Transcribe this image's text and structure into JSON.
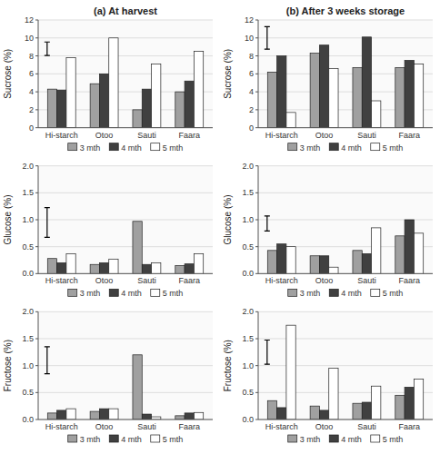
{
  "chart_data": [
    {
      "type": "bar",
      "title": "(a) At harvest",
      "categories": [
        "Hi-starch",
        "Otoo",
        "Sauti",
        "Faara"
      ],
      "series": [
        {
          "name": "3 mth",
          "color": "#a0a0a0",
          "values": [
            4.3,
            4.9,
            2.0,
            4.0
          ]
        },
        {
          "name": "4 mth",
          "color": "#404040",
          "values": [
            4.2,
            6.0,
            4.3,
            5.2
          ]
        },
        {
          "name": "5 mth",
          "color": "#ffffff",
          "values": [
            7.8,
            10.0,
            7.1,
            8.5
          ]
        }
      ],
      "ylabel": "Sucrose (%)",
      "ylim": [
        0,
        12
      ],
      "yticks": [
        0,
        2,
        4,
        6,
        8,
        10,
        12
      ],
      "grid": true,
      "legend": "bottom",
      "lsd": 1.5,
      "lsd_y": 8.8
    },
    {
      "type": "bar",
      "title": "(b) After 3 weeks storage",
      "categories": [
        "Hi-starch",
        "Otoo",
        "Sauti",
        "Faara"
      ],
      "series": [
        {
          "name": "3 mth",
          "color": "#a0a0a0",
          "values": [
            6.2,
            8.3,
            6.7,
            6.7
          ]
        },
        {
          "name": "4 mth",
          "color": "#404040",
          "values": [
            8.0,
            9.2,
            10.1,
            7.5
          ]
        },
        {
          "name": "5 mth",
          "color": "#ffffff",
          "values": [
            1.7,
            6.6,
            3.0,
            7.1
          ]
        }
      ],
      "ylabel": "Sucrose (%)",
      "ylim": [
        0,
        12
      ],
      "yticks": [
        0,
        2,
        4,
        6,
        8,
        10,
        12
      ],
      "grid": true,
      "legend": "bottom",
      "lsd": 2.5,
      "lsd_y": 10.0
    },
    {
      "type": "bar",
      "categories": [
        "Hi-starch",
        "Otoo",
        "Sauti",
        "Faara"
      ],
      "series": [
        {
          "name": "3 mth",
          "color": "#a0a0a0",
          "values": [
            0.28,
            0.17,
            0.97,
            0.15
          ]
        },
        {
          "name": "4 mth",
          "color": "#404040",
          "values": [
            0.2,
            0.2,
            0.17,
            0.18
          ]
        },
        {
          "name": "5 mth",
          "color": "#ffffff",
          "values": [
            0.37,
            0.27,
            0.2,
            0.37
          ]
        }
      ],
      "ylabel": "Glucose (%)",
      "ylim": [
        0,
        2
      ],
      "yticks": [
        {
          "value": 0,
          "label": "0.0"
        },
        0.5,
        {
          "value": 1.0,
          "label": "1.0"
        },
        1.5,
        {
          "value": 2.0,
          "label": "2.0"
        }
      ],
      "grid": true,
      "legend": "bottom",
      "lsd": 0.55,
      "lsd_y": 0.95
    },
    {
      "type": "bar",
      "categories": [
        "Hi-starch",
        "Otoo",
        "Sauti",
        "Faara"
      ],
      "series": [
        {
          "name": "3 mth",
          "color": "#a0a0a0",
          "values": [
            0.43,
            0.33,
            0.43,
            0.7
          ]
        },
        {
          "name": "4 mth",
          "color": "#404040",
          "values": [
            0.55,
            0.33,
            0.37,
            1.0
          ]
        },
        {
          "name": "5 mth",
          "color": "#ffffff",
          "values": [
            0.5,
            0.12,
            0.85,
            0.75
          ]
        }
      ],
      "ylabel": "Glucose (%)",
      "ylim": [
        0,
        2
      ],
      "yticks": [
        {
          "value": 0,
          "label": "0.0"
        },
        0.5,
        {
          "value": 1.0,
          "label": "1.0"
        },
        1.5,
        {
          "value": 2.0,
          "label": "2.0"
        }
      ],
      "grid": true,
      "legend": "bottom",
      "lsd": 0.28,
      "lsd_y": 0.93
    },
    {
      "type": "bar",
      "categories": [
        "Hi-starch",
        "Otoo",
        "Sauti",
        "Faara"
      ],
      "series": [
        {
          "name": "3 mth",
          "color": "#a0a0a0",
          "values": [
            0.12,
            0.15,
            1.2,
            0.07
          ]
        },
        {
          "name": "4 mth",
          "color": "#404040",
          "values": [
            0.17,
            0.2,
            0.1,
            0.12
          ]
        },
        {
          "name": "5 mth",
          "color": "#ffffff",
          "values": [
            0.2,
            0.2,
            0.05,
            0.13
          ]
        }
      ],
      "ylabel": "Fructose (%)",
      "ylim": [
        0,
        2
      ],
      "yticks": [
        {
          "value": 0,
          "label": "0.0"
        },
        0.5,
        {
          "value": 1.0,
          "label": "1.0"
        },
        1.5,
        {
          "value": 2.0,
          "label": "2.0"
        }
      ],
      "grid": true,
      "legend": "bottom",
      "lsd": 0.5,
      "lsd_y": 1.1
    },
    {
      "type": "bar",
      "categories": [
        "Hi-starch",
        "Otoo",
        "Sauti",
        "Faara"
      ],
      "series": [
        {
          "name": "3 mth",
          "color": "#a0a0a0",
          "values": [
            0.35,
            0.25,
            0.3,
            0.45
          ]
        },
        {
          "name": "4 mth",
          "color": "#404040",
          "values": [
            0.22,
            0.17,
            0.32,
            0.6
          ]
        },
        {
          "name": "5 mth",
          "color": "#ffffff",
          "values": [
            1.75,
            0.95,
            0.62,
            0.75
          ]
        }
      ],
      "ylabel": "Fructose (%)",
      "ylim": [
        0,
        2
      ],
      "yticks": [
        {
          "value": 0,
          "label": "0.0"
        },
        0.5,
        {
          "value": 1.0,
          "label": "1.0"
        },
        1.5,
        {
          "value": 2.0,
          "label": "2.0"
        }
      ],
      "grid": true,
      "legend": "bottom",
      "lsd": 0.45,
      "lsd_y": 1.25
    }
  ]
}
